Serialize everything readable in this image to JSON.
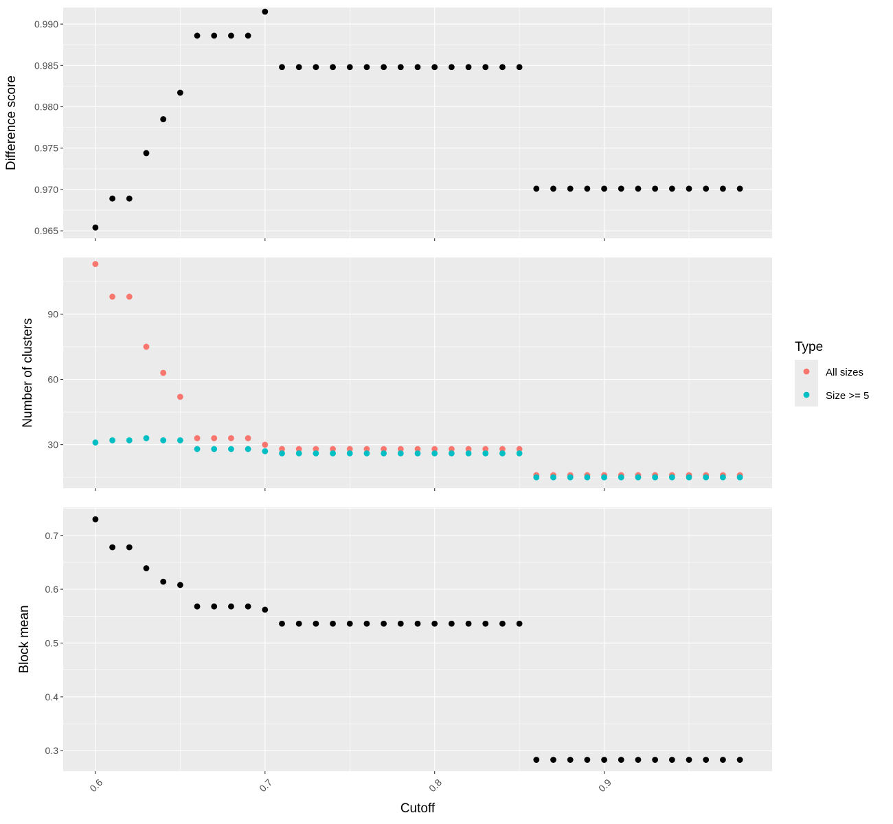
{
  "chart_data": {
    "type": "scatter",
    "xlabel": "Cutoff",
    "x_ticks": [
      0.6,
      0.7,
      0.8,
      0.9
    ],
    "x_tick_labels": [
      "0.6",
      "0.7",
      "0.8",
      "0.9"
    ],
    "xlim": [
      0.581,
      0.999
    ],
    "x": [
      0.6,
      0.61,
      0.62,
      0.63,
      0.64,
      0.65,
      0.66,
      0.67,
      0.68,
      0.69,
      0.7,
      0.71,
      0.72,
      0.73,
      0.74,
      0.75,
      0.76,
      0.77,
      0.78,
      0.79,
      0.8,
      0.81,
      0.82,
      0.83,
      0.84,
      0.85,
      0.86,
      0.87,
      0.88,
      0.89,
      0.9,
      0.91,
      0.92,
      0.93,
      0.94,
      0.95,
      0.96,
      0.97,
      0.98
    ],
    "grid": true,
    "legend_position": "right",
    "panels": [
      {
        "ylabel": "Difference score",
        "ylim": [
          0.9641,
          0.992
        ],
        "y_ticks": [
          0.965,
          0.97,
          0.975,
          0.98,
          0.985,
          0.99
        ],
        "y_tick_labels": [
          "0.965",
          "0.970",
          "0.975",
          "0.980",
          "0.985",
          "0.990"
        ],
        "series": [
          {
            "color": "#000000",
            "values": [
              0.9654,
              0.9689,
              0.9689,
              0.9744,
              0.9785,
              0.9817,
              0.9886,
              0.9886,
              0.9886,
              0.9886,
              0.9915,
              0.9848,
              0.9848,
              0.9848,
              0.9848,
              0.9848,
              0.9848,
              0.9848,
              0.9848,
              0.9848,
              0.9848,
              0.9848,
              0.9848,
              0.9848,
              0.9848,
              0.9848,
              0.9701,
              0.9701,
              0.9701,
              0.9701,
              0.9701,
              0.9701,
              0.9701,
              0.9701,
              0.9701,
              0.9701,
              0.9701,
              0.9701,
              0.9701
            ]
          }
        ]
      },
      {
        "ylabel": "Number of clusters",
        "ylim": [
          10,
          116
        ],
        "y_ticks": [
          30,
          60,
          90
        ],
        "y_tick_labels": [
          "30",
          "60",
          "90"
        ],
        "series": [
          {
            "name": "All sizes",
            "color": "#f8766d",
            "values": [
              113,
              98,
              98,
              75,
              63,
              52,
              33,
              33,
              33,
              33,
              30,
              28,
              28,
              28,
              28,
              28,
              28,
              28,
              28,
              28,
              28,
              28,
              28,
              28,
              28,
              28,
              16,
              16,
              16,
              16,
              16,
              16,
              16,
              16,
              16,
              16,
              16,
              16,
              16
            ]
          },
          {
            "name": "Size >= 5",
            "color": "#00bfc4",
            "values": [
              31,
              32,
              32,
              33,
              32,
              32,
              28,
              28,
              28,
              28,
              27,
              26,
              26,
              26,
              26,
              26,
              26,
              26,
              26,
              26,
              26,
              26,
              26,
              26,
              26,
              26,
              15,
              15,
              15,
              15,
              15,
              15,
              15,
              15,
              15,
              15,
              15,
              15,
              15
            ]
          }
        ]
      },
      {
        "ylabel": "Block mean",
        "ylim": [
          0.262,
          0.752
        ],
        "y_ticks": [
          0.3,
          0.4,
          0.5,
          0.6,
          0.7
        ],
        "y_tick_labels": [
          "0.3",
          "0.4",
          "0.5",
          "0.6",
          "0.7"
        ],
        "series": [
          {
            "color": "#000000",
            "values": [
              0.73,
              0.678,
              0.678,
              0.639,
              0.614,
              0.608,
              0.568,
              0.568,
              0.568,
              0.568,
              0.562,
              0.536,
              0.536,
              0.536,
              0.536,
              0.536,
              0.536,
              0.536,
              0.536,
              0.536,
              0.536,
              0.536,
              0.536,
              0.536,
              0.536,
              0.536,
              0.283,
              0.283,
              0.283,
              0.283,
              0.283,
              0.283,
              0.283,
              0.283,
              0.283,
              0.283,
              0.283,
              0.283,
              0.283
            ]
          }
        ]
      }
    ],
    "legend": {
      "title": "Type",
      "entries": [
        {
          "label": "All sizes",
          "color": "#f8766d"
        },
        {
          "label": "Size >= 5",
          "color": "#00bfc4"
        }
      ]
    }
  }
}
